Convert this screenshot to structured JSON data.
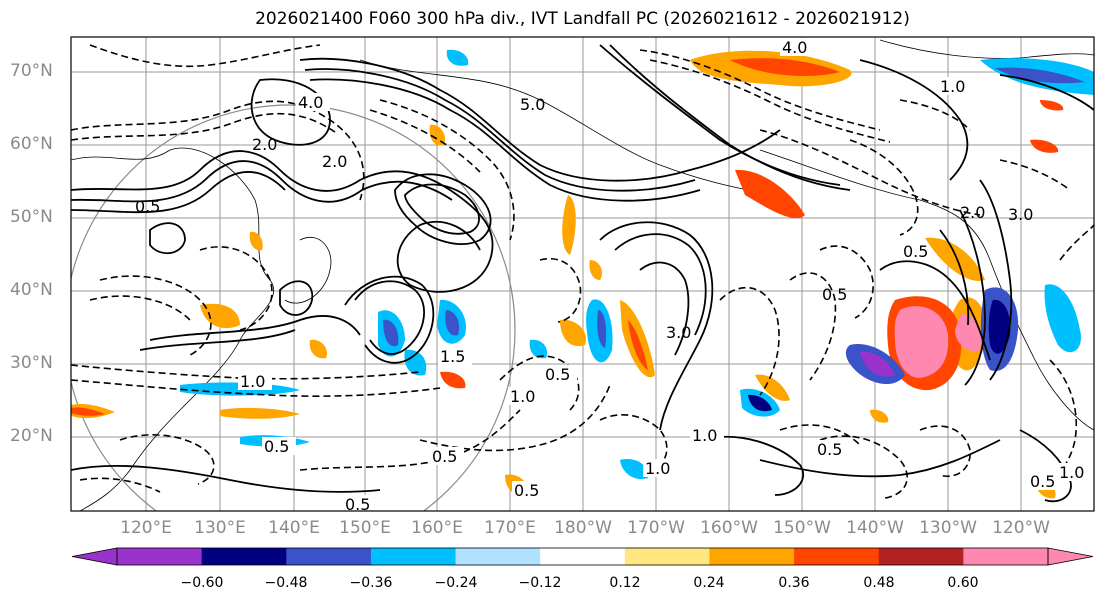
{
  "title": "2026021400 F060 300 hPa div., IVT Landfall PC (2026021612 - 2026021912)",
  "lat_labels": [
    "70°N",
    "60°N",
    "50°N",
    "40°N",
    "30°N",
    "20°N"
  ],
  "lon_labels": [
    "120°E",
    "130°E",
    "140°E",
    "150°E",
    "160°E",
    "170°E",
    "180°W",
    "170°W",
    "160°W",
    "150°W",
    "140°W",
    "130°W",
    "120°W"
  ],
  "contour_labels": [
    "4.0",
    "4.0",
    "2.0",
    "2.0",
    "1.0",
    "1.0",
    "0.5",
    "0.5",
    "0.5",
    "0.5",
    "0.5",
    "0.5",
    "0.5",
    "1.0",
    "1.0",
    "1.0",
    "1.5",
    "3.0",
    "5.0",
    "2.0",
    "0.5",
    "0.5",
    "0.5",
    "1.0",
    "3.0"
  ],
  "colorbar": {
    "colors": [
      "#9933cc",
      "#000080",
      "#3a53c8",
      "#00bfff",
      "#b0e2ff",
      "#ffffff",
      "#ffe680",
      "#ffa500",
      "#ff4500",
      "#b22222",
      "#ff88b0"
    ],
    "tick_labels": [
      "−0.60",
      "−0.48",
      "−0.36",
      "−0.24",
      "−0.12",
      "0.12",
      "0.24",
      "0.36",
      "0.48",
      "0.60"
    ]
  }
}
